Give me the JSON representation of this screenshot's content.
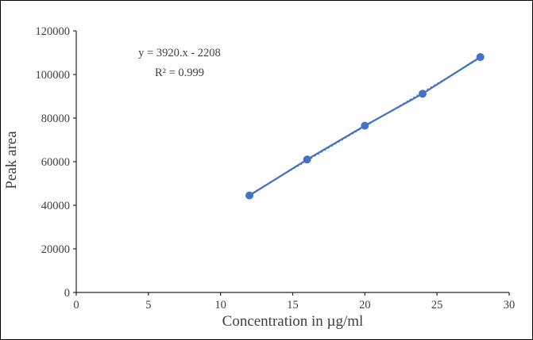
{
  "chart_data": {
    "type": "scatter",
    "title": "",
    "xlabel": "Concentration in µg/ml",
    "ylabel": "Peak area",
    "x": [
      12,
      16,
      20,
      24,
      28
    ],
    "y": [
      44500,
      61000,
      76500,
      91200,
      108000
    ],
    "x_axis": {
      "range": [
        0,
        30
      ],
      "ticks": [
        0,
        5,
        10,
        15,
        20,
        25,
        30
      ]
    },
    "y_axis": {
      "range": [
        0,
        120000
      ],
      "ticks": [
        0,
        20000,
        40000,
        60000,
        80000,
        100000,
        120000
      ]
    },
    "grid": false,
    "legend": "none",
    "trendline": {
      "slope": 3920,
      "intercept": -2208,
      "x_start": 12,
      "x_end": 28
    },
    "annotations": {
      "equation": "y = 3920.x - 2208",
      "r_squared": "R² = 0.999"
    },
    "colors": {
      "series": "#4472C4",
      "axis": "#262626",
      "text": "#404040"
    }
  }
}
